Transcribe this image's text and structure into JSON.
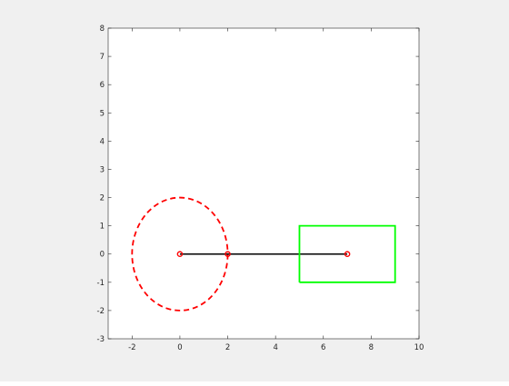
{
  "chart_data": {
    "type": "line",
    "title": "",
    "xlabel": "",
    "ylabel": "",
    "xlim": [
      -3,
      10
    ],
    "ylim": [
      -3,
      8
    ],
    "xticks": [
      -2,
      0,
      2,
      4,
      6,
      8,
      10
    ],
    "yticks": [
      -3,
      -2,
      -1,
      0,
      1,
      2,
      3,
      4,
      5,
      6,
      7,
      8
    ],
    "grid": false,
    "series": [
      {
        "kind": "ellipse",
        "center": [
          0,
          0
        ],
        "rx": 2,
        "ry": 2,
        "style": "dashed",
        "color": "#ff0000"
      },
      {
        "kind": "polyline",
        "x": [
          0,
          2,
          7
        ],
        "y": [
          0,
          0,
          0
        ],
        "style": "solid",
        "color": "#000000"
      },
      {
        "kind": "markers",
        "marker": "circle",
        "x": [
          0,
          2,
          7
        ],
        "y": [
          0,
          0,
          0
        ],
        "color": "#ff0000"
      },
      {
        "kind": "rectangle",
        "x": [
          5,
          9,
          9,
          5,
          5
        ],
        "y": [
          -1,
          -1,
          1,
          1,
          -1
        ],
        "style": "solid",
        "color": "#00ff00"
      }
    ]
  }
}
